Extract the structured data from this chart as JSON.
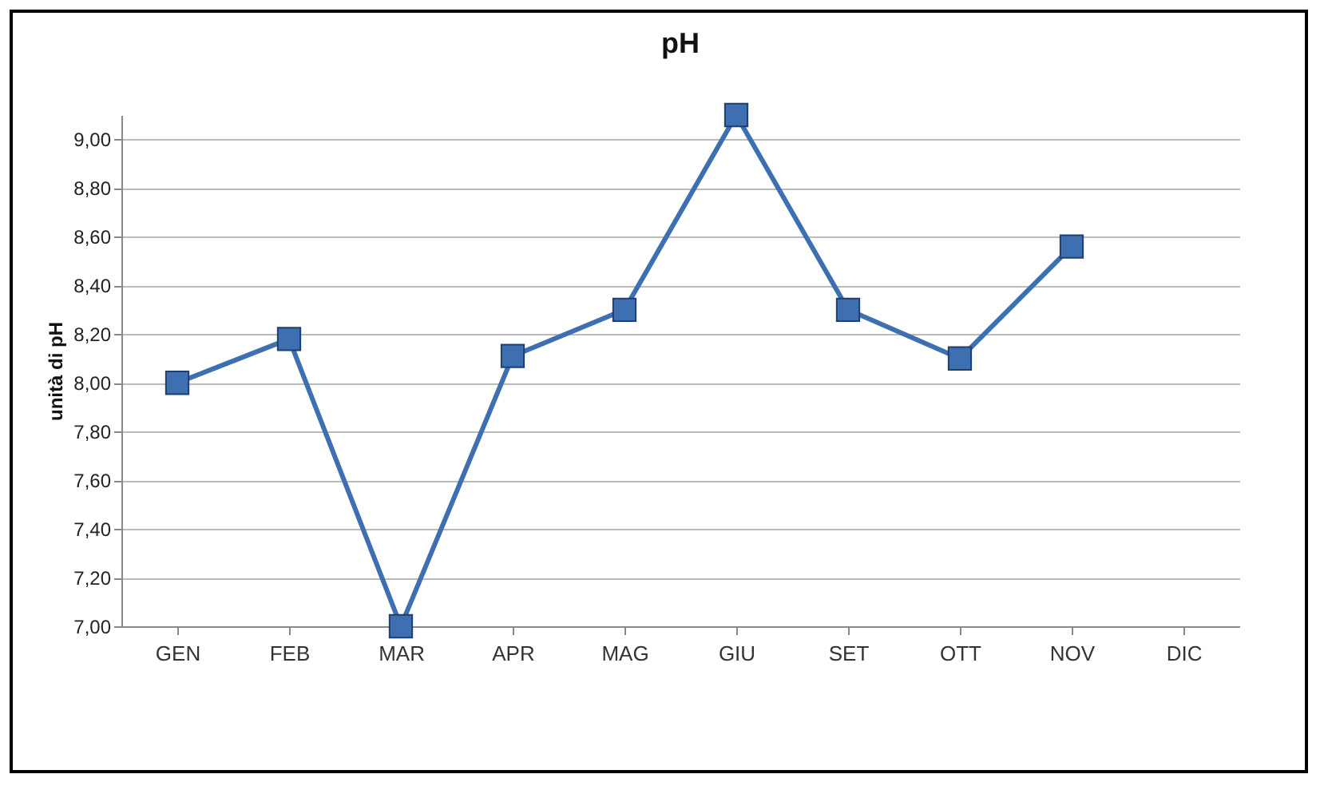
{
  "chart_data": {
    "type": "line",
    "title": "pH",
    "ylabel": "unità di pH",
    "categories": [
      "GEN",
      "FEB",
      "MAR",
      "APR",
      "MAG",
      "GIU",
      "SET",
      "OTT",
      "NOV",
      "DIC"
    ],
    "series": [
      {
        "color": "#3e6fb0",
        "values": [
          8.0,
          8.18,
          7.0,
          8.11,
          8.3,
          9.1,
          8.3,
          8.1,
          8.56,
          null
        ]
      }
    ],
    "ylim": [
      7,
      9.1
    ],
    "yticks": [
      {
        "value": 7,
        "label": "7,00"
      },
      {
        "value": 7.2,
        "label": "7,20"
      },
      {
        "value": 7.4,
        "label": "7,40"
      },
      {
        "value": 7.6,
        "label": "7,60"
      },
      {
        "value": 7.8,
        "label": "7,80"
      },
      {
        "value": 8,
        "label": "8,00"
      },
      {
        "value": 8.2,
        "label": "8,20"
      },
      {
        "value": 8.4,
        "label": "8,40"
      },
      {
        "value": 8.6,
        "label": "8,60"
      },
      {
        "value": 8.8,
        "label": "8,80"
      },
      {
        "value": 9,
        "label": "9,00"
      }
    ],
    "grid": "y",
    "marker": "square",
    "line_style": "solid"
  }
}
